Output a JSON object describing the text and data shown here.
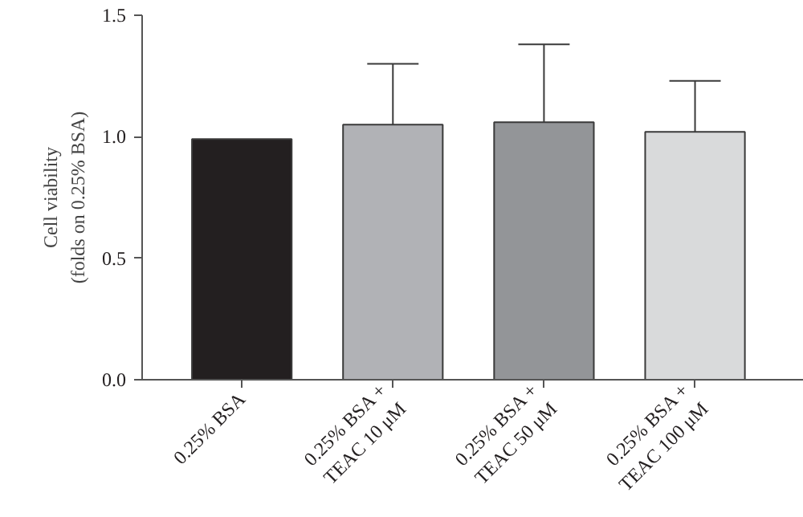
{
  "chart_data": {
    "type": "bar",
    "ylabel": "Cell viability\n(folds on 0.25% BSA)",
    "categories": [
      "0.25% BSA",
      "0.25% BSA +\nTEAC 10 μM",
      "0.25% BSA +\nTEAC 50 μM",
      "0.25% BSA +\nTEAC 100 μM"
    ],
    "values": [
      0.99,
      1.05,
      1.06,
      1.02
    ],
    "colors": [
      "#231f20",
      "#b1b2b6",
      "#939598",
      "#d9dadb"
    ],
    "errors": [
      null,
      [
        1.05,
        1.3
      ],
      [
        1.06,
        1.38
      ],
      [
        1.02,
        1.23
      ]
    ],
    "ylim": [
      0,
      1.5
    ],
    "yticks": [
      {
        "value": 0,
        "label": "0.0"
      },
      {
        "value": 0.5,
        "label": "0.5"
      },
      {
        "value": 1,
        "label": "1.0"
      },
      {
        "value": 1.5,
        "label": "1.5"
      }
    ],
    "grid": false
  }
}
